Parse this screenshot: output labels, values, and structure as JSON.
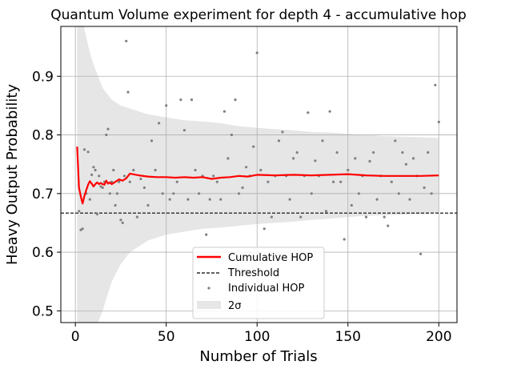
{
  "chart_data": {
    "type": "line",
    "title": "Quantum Volume experiment for depth 4 - accumulative hop",
    "xlabel": "Number of Trials",
    "ylabel": "Heavy Output Probability",
    "xlim": [
      -8,
      210
    ],
    "ylim": [
      0.48,
      0.985
    ],
    "x_ticks": [
      0,
      50,
      100,
      150,
      200
    ],
    "y_ticks": [
      0.5,
      0.6,
      0.7,
      0.8,
      0.9
    ],
    "x_tick_labels": [
      "0",
      "50",
      "100",
      "150",
      "200"
    ],
    "y_tick_labels": [
      "0.5",
      "0.6",
      "0.7",
      "0.8",
      "0.9"
    ],
    "grid": true,
    "legend_position": "lower center",
    "threshold": 0.6667,
    "series": [
      {
        "name": "Cumulative HOP",
        "kind": "line",
        "color": "#ff0000",
        "x": [
          1,
          2,
          3,
          4,
          5,
          6,
          7,
          8,
          9,
          10,
          11,
          12,
          13,
          14,
          15,
          16,
          17,
          18,
          19,
          20,
          22,
          24,
          26,
          28,
          30,
          35,
          40,
          45,
          50,
          55,
          60,
          65,
          70,
          75,
          80,
          85,
          90,
          95,
          100,
          110,
          120,
          130,
          140,
          150,
          160,
          170,
          180,
          190,
          200
        ],
        "values": [
          0.78,
          0.71,
          0.695,
          0.683,
          0.696,
          0.706,
          0.715,
          0.721,
          0.717,
          0.712,
          0.716,
          0.719,
          0.716,
          0.718,
          0.716,
          0.715,
          0.722,
          0.717,
          0.719,
          0.716,
          0.72,
          0.724,
          0.722,
          0.726,
          0.734,
          0.731,
          0.729,
          0.728,
          0.728,
          0.727,
          0.728,
          0.727,
          0.728,
          0.725,
          0.727,
          0.728,
          0.73,
          0.729,
          0.732,
          0.731,
          0.732,
          0.731,
          0.732,
          0.733,
          0.731,
          0.73,
          0.73,
          0.73,
          0.731
        ]
      },
      {
        "name": "Threshold",
        "kind": "hline",
        "color": "#000000",
        "values": [
          0.6667
        ]
      },
      {
        "name": "Individual HOP",
        "kind": "scatter",
        "color": "#808080",
        "x": [
          2,
          3,
          4,
          5,
          6,
          7,
          8,
          9,
          10,
          11,
          12,
          13,
          14,
          15,
          16,
          17,
          18,
          19,
          20,
          21,
          22,
          23,
          24,
          25,
          26,
          27,
          28,
          29,
          30,
          32,
          34,
          36,
          38,
          40,
          42,
          44,
          46,
          48,
          50,
          52,
          54,
          56,
          58,
          60,
          62,
          64,
          66,
          68,
          70,
          72,
          74,
          76,
          78,
          80,
          82,
          84,
          86,
          88,
          90,
          92,
          94,
          96,
          98,
          100,
          102,
          104,
          106,
          108,
          110,
          112,
          114,
          116,
          118,
          120,
          122,
          124,
          126,
          128,
          130,
          132,
          134,
          136,
          138,
          140,
          142,
          144,
          146,
          148,
          150,
          152,
          154,
          156,
          158,
          160,
          162,
          164,
          166,
          168,
          170,
          172,
          174,
          176,
          178,
          180,
          182,
          184,
          186,
          188,
          190,
          192,
          194,
          196,
          198,
          200
        ],
        "values": [
          0.67,
          0.638,
          0.64,
          0.775,
          0.7,
          0.771,
          0.69,
          0.732,
          0.745,
          0.74,
          0.665,
          0.73,
          0.712,
          0.71,
          0.72,
          0.8,
          0.81,
          0.7,
          0.72,
          0.74,
          0.68,
          0.7,
          0.72,
          0.655,
          0.65,
          0.73,
          0.96,
          0.873,
          0.72,
          0.74,
          0.66,
          0.725,
          0.71,
          0.68,
          0.79,
          0.74,
          0.82,
          0.7,
          0.85,
          0.69,
          0.7,
          0.72,
          0.86,
          0.808,
          0.69,
          0.86,
          0.74,
          0.7,
          0.73,
          0.63,
          0.69,
          0.73,
          0.72,
          0.69,
          0.84,
          0.76,
          0.8,
          0.86,
          0.7,
          0.71,
          0.745,
          0.73,
          0.78,
          0.94,
          0.74,
          0.64,
          0.72,
          0.66,
          0.73,
          0.79,
          0.805,
          0.73,
          0.69,
          0.76,
          0.77,
          0.66,
          0.73,
          0.838,
          0.7,
          0.756,
          0.73,
          0.79,
          0.67,
          0.84,
          0.72,
          0.77,
          0.72,
          0.622,
          0.74,
          0.68,
          0.76,
          0.7,
          0.73,
          0.66,
          0.755,
          0.77,
          0.69,
          0.73,
          0.66,
          0.645,
          0.72,
          0.79,
          0.7,
          0.77,
          0.75,
          0.69,
          0.76,
          0.73,
          0.597,
          0.71,
          0.77,
          0.7,
          0.885,
          0.822
        ]
      },
      {
        "name": "2σ",
        "kind": "band",
        "color": "#e6e6e6",
        "x": [
          1,
          3,
          5,
          8,
          10,
          15,
          20,
          25,
          30,
          40,
          50,
          60,
          70,
          80,
          90,
          100,
          110,
          120,
          130,
          140,
          150,
          160,
          170,
          180,
          190,
          200
        ],
        "upper": [
          1.09,
          1.02,
          0.98,
          0.94,
          0.92,
          0.88,
          0.86,
          0.85,
          0.845,
          0.835,
          0.83,
          0.825,
          0.823,
          0.82,
          0.815,
          0.812,
          0.81,
          0.808,
          0.805,
          0.804,
          0.802,
          0.8,
          0.798,
          0.797,
          0.796,
          0.795
        ],
        "lower": [
          0.43,
          0.41,
          0.42,
          0.44,
          0.46,
          0.5,
          0.55,
          0.58,
          0.6,
          0.62,
          0.63,
          0.635,
          0.64,
          0.642,
          0.645,
          0.648,
          0.65,
          0.652,
          0.655,
          0.657,
          0.66,
          0.662,
          0.663,
          0.664,
          0.665,
          0.667
        ]
      }
    ]
  }
}
